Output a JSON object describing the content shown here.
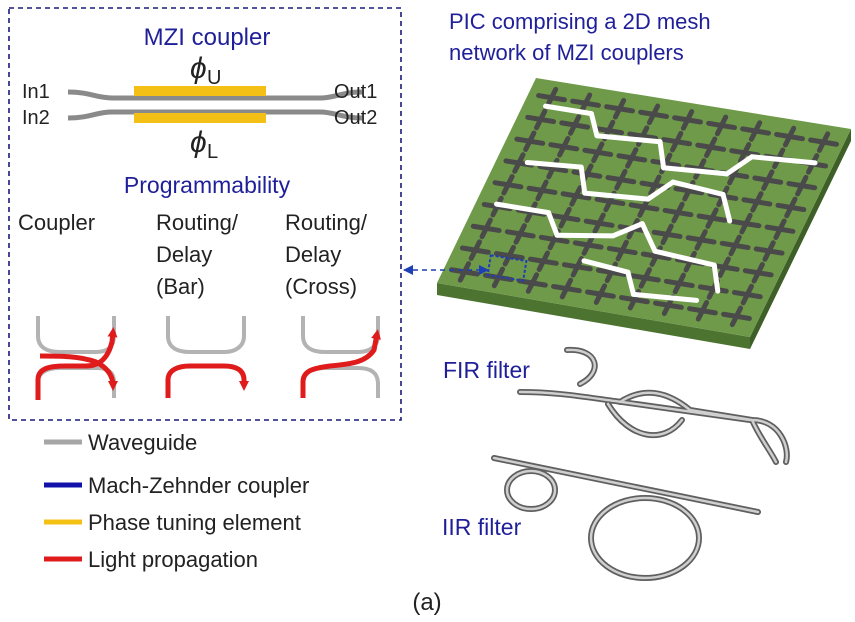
{
  "mzi": {
    "title": "MZI coupler",
    "in1": "In1",
    "in2": "In2",
    "out1": "Out1",
    "out2": "Out2",
    "phi": "ϕ",
    "phi_u_sub": "U",
    "phi_l_sub": "L"
  },
  "programmability": {
    "title": "Programmability",
    "coupler": "Coupler",
    "bar_line1": "Routing/",
    "bar_line2": "Delay",
    "bar_line3": "(Bar)",
    "cross_line1": "Routing/",
    "cross_line2": "Delay",
    "cross_line3": "(Cross)"
  },
  "legend": {
    "items": [
      {
        "label": "Waveguide",
        "color": "#a6a6a6"
      },
      {
        "label": "Mach-Zehnder coupler",
        "color": "#1212aa"
      },
      {
        "label": "Phase tuning element",
        "color": "#f5c016"
      },
      {
        "label": "Light propagation",
        "color": "#e01b1b"
      }
    ]
  },
  "pic": {
    "title_line1": "PIC comprising a 2D mesh",
    "title_line2": "network of MZI couplers",
    "board_color": "#6f9a49"
  },
  "filters": {
    "fir": "FIR filter",
    "iir": "IIR filter"
  },
  "caption": "(a)"
}
